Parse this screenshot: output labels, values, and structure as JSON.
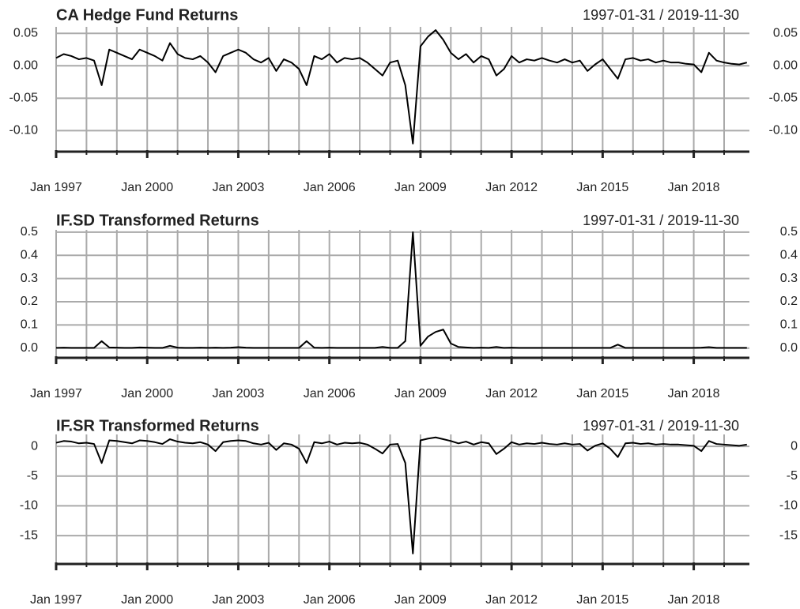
{
  "chart_data": [
    {
      "type": "line",
      "title": "CA Hedge Fund Returns",
      "date_range": "1997-01-31 / 2019-11-30",
      "x": [
        "1997-01",
        "1997-04",
        "1997-07",
        "1997-10",
        "1998-01",
        "1998-04",
        "1998-07",
        "1998-10",
        "1999-01",
        "1999-04",
        "1999-07",
        "1999-10",
        "2000-01",
        "2000-04",
        "2000-07",
        "2000-10",
        "2001-01",
        "2001-04",
        "2001-07",
        "2001-10",
        "2002-01",
        "2002-04",
        "2002-07",
        "2002-10",
        "2003-01",
        "2003-04",
        "2003-07",
        "2003-10",
        "2004-01",
        "2004-04",
        "2004-07",
        "2004-10",
        "2005-01",
        "2005-04",
        "2005-07",
        "2005-10",
        "2006-01",
        "2006-04",
        "2006-07",
        "2006-10",
        "2007-01",
        "2007-04",
        "2007-07",
        "2007-10",
        "2008-01",
        "2008-04",
        "2008-07",
        "2008-10",
        "2009-01",
        "2009-04",
        "2009-07",
        "2009-10",
        "2010-01",
        "2010-04",
        "2010-07",
        "2010-10",
        "2011-01",
        "2011-04",
        "2011-07",
        "2011-10",
        "2012-01",
        "2012-04",
        "2012-07",
        "2012-10",
        "2013-01",
        "2013-04",
        "2013-07",
        "2013-10",
        "2014-01",
        "2014-04",
        "2014-07",
        "2014-10",
        "2015-01",
        "2015-04",
        "2015-07",
        "2015-10",
        "2016-01",
        "2016-04",
        "2016-07",
        "2016-10",
        "2017-01",
        "2017-04",
        "2017-07",
        "2017-10",
        "2018-01",
        "2018-04",
        "2018-07",
        "2018-10",
        "2019-01",
        "2019-04",
        "2019-07",
        "2019-10"
      ],
      "series": [
        {
          "color": "#000000",
          "values": [
            0.012,
            0.018,
            0.015,
            0.01,
            0.012,
            0.008,
            -0.03,
            0.025,
            0.02,
            0.015,
            0.01,
            0.025,
            0.02,
            0.015,
            0.008,
            0.035,
            0.018,
            0.012,
            0.01,
            0.015,
            0.005,
            -0.01,
            0.015,
            0.02,
            0.025,
            0.02,
            0.01,
            0.005,
            0.012,
            -0.008,
            0.01,
            0.005,
            -0.005,
            -0.03,
            0.015,
            0.01,
            0.018,
            0.005,
            0.012,
            0.01,
            0.012,
            0.005,
            -0.005,
            -0.015,
            0.005,
            0.008,
            -0.03,
            -0.12,
            0.03,
            0.045,
            0.055,
            0.04,
            0.02,
            0.01,
            0.018,
            0.005,
            0.015,
            0.01,
            -0.015,
            -0.005,
            0.015,
            0.005,
            0.01,
            0.008,
            0.012,
            0.008,
            0.005,
            0.01,
            0.005,
            0.008,
            -0.008,
            0.002,
            0.01,
            -0.005,
            -0.02,
            0.01,
            0.012,
            0.008,
            0.01,
            0.005,
            0.008,
            0.005,
            0.005,
            0.003,
            0.002,
            -0.01,
            0.02,
            0.008,
            0.005,
            0.003,
            0.002,
            0.005
          ]
        }
      ],
      "xlim": [
        "1997-01",
        "2019-11"
      ],
      "xticks": [
        {
          "value": "1997-01",
          "label": "Jan 1997"
        },
        {
          "value": "2000-01",
          "label": "Jan 2000"
        },
        {
          "value": "2003-01",
          "label": "Jan 2003"
        },
        {
          "value": "2006-01",
          "label": "Jan 2006"
        },
        {
          "value": "2009-01",
          "label": "Jan 2009"
        },
        {
          "value": "2012-01",
          "label": "Jan 2012"
        },
        {
          "value": "2015-01",
          "label": "Jan 2015"
        },
        {
          "value": "2018-01",
          "label": "Jan 2018"
        }
      ],
      "xgrid": [
        "1997-01",
        "1998-01",
        "1999-01",
        "2000-01",
        "2001-01",
        "2002-01",
        "2003-01",
        "2004-01",
        "2005-01",
        "2006-01",
        "2007-01",
        "2008-01",
        "2009-01",
        "2010-01",
        "2011-01",
        "2012-01",
        "2013-01",
        "2014-01",
        "2015-01",
        "2016-01",
        "2017-01",
        "2018-01",
        "2019-01"
      ],
      "ylim": [
        -0.13,
        0.06
      ],
      "yticks": [
        0.05,
        {
          "value": 0,
          "label": "0.00"
        },
        -0.05,
        {
          "value": -0.1,
          "label": "-0.10"
        }
      ],
      "grid": true
    },
    {
      "type": "line",
      "title": "IF.SD Transformed Returns",
      "date_range": "1997-01-31 / 2019-11-30",
      "x": [
        "1997-01",
        "1997-04",
        "1997-07",
        "1997-10",
        "1998-01",
        "1998-04",
        "1998-07",
        "1998-10",
        "1999-01",
        "1999-04",
        "1999-07",
        "1999-10",
        "2000-01",
        "2000-04",
        "2000-07",
        "2000-10",
        "2001-01",
        "2001-04",
        "2001-07",
        "2001-10",
        "2002-01",
        "2002-04",
        "2002-07",
        "2002-10",
        "2003-01",
        "2003-04",
        "2003-07",
        "2003-10",
        "2004-01",
        "2004-04",
        "2004-07",
        "2004-10",
        "2005-01",
        "2005-04",
        "2005-07",
        "2005-10",
        "2006-01",
        "2006-04",
        "2006-07",
        "2006-10",
        "2007-01",
        "2007-04",
        "2007-07",
        "2007-10",
        "2008-01",
        "2008-04",
        "2008-07",
        "2008-10",
        "2009-01",
        "2009-04",
        "2009-07",
        "2009-10",
        "2010-01",
        "2010-04",
        "2010-07",
        "2010-10",
        "2011-01",
        "2011-04",
        "2011-07",
        "2011-10",
        "2012-01",
        "2012-04",
        "2012-07",
        "2012-10",
        "2013-01",
        "2013-04",
        "2013-07",
        "2013-10",
        "2014-01",
        "2014-04",
        "2014-07",
        "2014-10",
        "2015-01",
        "2015-04",
        "2015-07",
        "2015-10",
        "2016-01",
        "2016-04",
        "2016-07",
        "2016-10",
        "2017-01",
        "2017-04",
        "2017-07",
        "2017-10",
        "2018-01",
        "2018-04",
        "2018-07",
        "2018-10",
        "2019-01",
        "2019-04",
        "2019-07",
        "2019-10"
      ],
      "series": [
        {
          "color": "#000000",
          "values": [
            0.001,
            0.002,
            0.001,
            0.001,
            0.001,
            0.001,
            0.03,
            0.003,
            0.002,
            0.001,
            0.001,
            0.003,
            0.002,
            0.001,
            0.001,
            0.01,
            0.002,
            0.001,
            0.001,
            0.002,
            0.001,
            0.002,
            0.001,
            0.002,
            0.004,
            0.002,
            0.001,
            0.001,
            0.001,
            0.001,
            0.001,
            0.001,
            0.001,
            0.03,
            0.002,
            0.001,
            0.002,
            0.001,
            0.001,
            0.001,
            0.001,
            0.001,
            0.001,
            0.005,
            0.001,
            0.001,
            0.03,
            0.5,
            0.01,
            0.05,
            0.07,
            0.08,
            0.02,
            0.005,
            0.003,
            0.001,
            0.002,
            0.001,
            0.005,
            0.001,
            0.002,
            0.001,
            0.001,
            0.001,
            0.001,
            0.001,
            0.001,
            0.001,
            0.001,
            0.001,
            0.001,
            0.001,
            0.001,
            0.001,
            0.015,
            0.001,
            0.001,
            0.001,
            0.001,
            0.001,
            0.001,
            0.001,
            0.001,
            0.001,
            0.001,
            0.002,
            0.004,
            0.001,
            0.001,
            0.001,
            0.001,
            0.001
          ]
        }
      ],
      "xlim": [
        "1997-01",
        "2019-11"
      ],
      "xticks": [
        {
          "value": "1997-01",
          "label": "Jan 1997"
        },
        {
          "value": "2000-01",
          "label": "Jan 2000"
        },
        {
          "value": "2003-01",
          "label": "Jan 2003"
        },
        {
          "value": "2006-01",
          "label": "Jan 2006"
        },
        {
          "value": "2009-01",
          "label": "Jan 2009"
        },
        {
          "value": "2012-01",
          "label": "Jan 2012"
        },
        {
          "value": "2015-01",
          "label": "Jan 2015"
        },
        {
          "value": "2018-01",
          "label": "Jan 2018"
        }
      ],
      "xgrid": [
        "1997-01",
        "1998-01",
        "1999-01",
        "2000-01",
        "2001-01",
        "2002-01",
        "2003-01",
        "2004-01",
        "2005-01",
        "2006-01",
        "2007-01",
        "2008-01",
        "2009-01",
        "2010-01",
        "2011-01",
        "2012-01",
        "2013-01",
        "2014-01",
        "2015-01",
        "2016-01",
        "2017-01",
        "2018-01",
        "2019-01"
      ],
      "ylim": [
        -0.035,
        0.51
      ],
      "yticks": [
        0.5,
        0.4,
        0.3,
        0.2,
        0.1,
        {
          "value": 0,
          "label": "0.0"
        }
      ],
      "grid": true
    },
    {
      "type": "line",
      "title": "IF.SR Transformed Returns",
      "date_range": "1997-01-31 / 2019-11-30",
      "x": [
        "1997-01",
        "1997-04",
        "1997-07",
        "1997-10",
        "1998-01",
        "1998-04",
        "1998-07",
        "1998-10",
        "1999-01",
        "1999-04",
        "1999-07",
        "1999-10",
        "2000-01",
        "2000-04",
        "2000-07",
        "2000-10",
        "2001-01",
        "2001-04",
        "2001-07",
        "2001-10",
        "2002-01",
        "2002-04",
        "2002-07",
        "2002-10",
        "2003-01",
        "2003-04",
        "2003-07",
        "2003-10",
        "2004-01",
        "2004-04",
        "2004-07",
        "2004-10",
        "2005-01",
        "2005-04",
        "2005-07",
        "2005-10",
        "2006-01",
        "2006-04",
        "2006-07",
        "2006-10",
        "2007-01",
        "2007-04",
        "2007-07",
        "2007-10",
        "2008-01",
        "2008-04",
        "2008-07",
        "2008-10",
        "2009-01",
        "2009-04",
        "2009-07",
        "2009-10",
        "2010-01",
        "2010-04",
        "2010-07",
        "2010-10",
        "2011-01",
        "2011-04",
        "2011-07",
        "2011-10",
        "2012-01",
        "2012-04",
        "2012-07",
        "2012-10",
        "2013-01",
        "2013-04",
        "2013-07",
        "2013-10",
        "2014-01",
        "2014-04",
        "2014-07",
        "2014-10",
        "2015-01",
        "2015-04",
        "2015-07",
        "2015-10",
        "2016-01",
        "2016-04",
        "2016-07",
        "2016-10",
        "2017-01",
        "2017-04",
        "2017-07",
        "2017-10",
        "2018-01",
        "2018-04",
        "2018-07",
        "2018-10",
        "2019-01",
        "2019-04",
        "2019-07",
        "2019-10"
      ],
      "series": [
        {
          "color": "#000000",
          "values": [
            0.6,
            0.9,
            0.8,
            0.5,
            0.6,
            0.4,
            -2.8,
            1.0,
            0.9,
            0.7,
            0.5,
            1.0,
            0.9,
            0.7,
            0.4,
            1.2,
            0.8,
            0.6,
            0.5,
            0.7,
            0.3,
            -0.8,
            0.7,
            0.9,
            1.0,
            0.9,
            0.5,
            0.3,
            0.6,
            -0.6,
            0.5,
            0.3,
            -0.4,
            -2.8,
            0.7,
            0.5,
            0.8,
            0.3,
            0.6,
            0.5,
            0.6,
            0.3,
            -0.4,
            -1.2,
            0.3,
            0.4,
            -2.8,
            -18,
            1.0,
            1.3,
            1.5,
            1.2,
            0.9,
            0.5,
            0.8,
            0.3,
            0.7,
            0.5,
            -1.3,
            -0.4,
            0.7,
            0.3,
            0.5,
            0.4,
            0.6,
            0.4,
            0.3,
            0.5,
            0.3,
            0.4,
            -0.7,
            0.1,
            0.5,
            -0.4,
            -1.8,
            0.5,
            0.6,
            0.4,
            0.5,
            0.3,
            0.4,
            0.3,
            0.3,
            0.2,
            0.1,
            -0.8,
            0.9,
            0.4,
            0.3,
            0.2,
            0.1,
            0.3
          ]
        }
      ],
      "xlim": [
        "1997-01",
        "2019-11"
      ],
      "xticks": [
        {
          "value": "1997-01",
          "label": "Jan 1997"
        },
        {
          "value": "2000-01",
          "label": "Jan 2000"
        },
        {
          "value": "2003-01",
          "label": "Jan 2003"
        },
        {
          "value": "2006-01",
          "label": "Jan 2006"
        },
        {
          "value": "2009-01",
          "label": "Jan 2009"
        },
        {
          "value": "2012-01",
          "label": "Jan 2012"
        },
        {
          "value": "2015-01",
          "label": "Jan 2015"
        },
        {
          "value": "2018-01",
          "label": "Jan 2018"
        }
      ],
      "xgrid": [
        "1997-01",
        "1998-01",
        "1999-01",
        "2000-01",
        "2001-01",
        "2002-01",
        "2003-01",
        "2004-01",
        "2005-01",
        "2006-01",
        "2007-01",
        "2008-01",
        "2009-01",
        "2010-01",
        "2011-01",
        "2012-01",
        "2013-01",
        "2014-01",
        "2015-01",
        "2016-01",
        "2017-01",
        "2018-01",
        "2019-01"
      ],
      "ylim": [
        -19.5,
        2
      ],
      "yticks": [
        0,
        -5,
        -10,
        -15
      ],
      "grid": true
    }
  ]
}
